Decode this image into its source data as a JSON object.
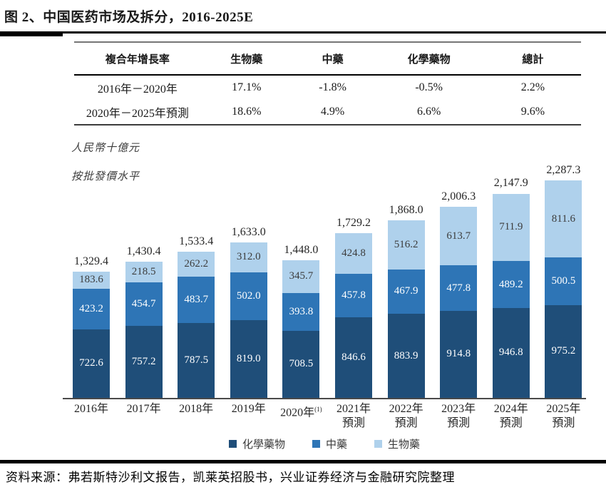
{
  "title": "图 2、中国医药市场及拆分，2016-2025E",
  "table": {
    "headers": [
      "複合年增長率",
      "生物藥",
      "中藥",
      "化學藥物",
      "總計"
    ],
    "rows": [
      [
        "2016年－2020年",
        "17.1%",
        "-1.8%",
        "-0.5%",
        "2.2%"
      ],
      [
        "2020年－2025年預測",
        "18.6%",
        "4.9%",
        "6.6%",
        "9.6%"
      ]
    ]
  },
  "chart_data": {
    "type": "bar",
    "stacked": true,
    "unit_label": "人民幣十億元",
    "price_label": "按批發價水平",
    "categories": [
      {
        "label": "2016年",
        "sup": "",
        "sub": ""
      },
      {
        "label": "2017年",
        "sup": "",
        "sub": ""
      },
      {
        "label": "2018年",
        "sup": "",
        "sub": ""
      },
      {
        "label": "2019年",
        "sup": "",
        "sub": ""
      },
      {
        "label": "2020年",
        "sup": "(1)",
        "sub": ""
      },
      {
        "label": "2021年",
        "sup": "",
        "sub": "預測"
      },
      {
        "label": "2022年",
        "sup": "",
        "sub": "預測"
      },
      {
        "label": "2023年",
        "sup": "",
        "sub": "預測"
      },
      {
        "label": "2024年",
        "sup": "",
        "sub": "預測"
      },
      {
        "label": "2025年",
        "sup": "",
        "sub": "預測"
      }
    ],
    "series": [
      {
        "name": "化學藥物",
        "color": "#1F4E79",
        "values": [
          722.6,
          757.2,
          787.5,
          819.0,
          708.5,
          846.6,
          883.9,
          914.8,
          946.8,
          975.2
        ]
      },
      {
        "name": "中藥",
        "color": "#2E75B6",
        "values": [
          423.2,
          454.7,
          483.7,
          502.0,
          393.8,
          457.8,
          467.9,
          477.8,
          489.2,
          500.5
        ]
      },
      {
        "name": "生物藥",
        "color": "#AFD1EC",
        "values": [
          183.6,
          218.5,
          262.2,
          312.0,
          345.7,
          424.8,
          516.2,
          613.7,
          711.9,
          811.6
        ]
      }
    ],
    "totals": [
      "1,329.4",
      "1,430.4",
      "1,533.4",
      "1,633.0",
      "1,448.0",
      "1,729.2",
      "1,868.0",
      "2,006.3",
      "2,147.9",
      "2,287.3"
    ],
    "legend": [
      "化學藥物",
      "中藥",
      "生物藥"
    ],
    "ylim": [
      0,
      2330
    ],
    "grid": false,
    "legend_position": "bottom"
  },
  "footer": "资料来源：弗若斯特沙利文报告，凯莱英招股书，兴业证券经济与金融研究院整理"
}
